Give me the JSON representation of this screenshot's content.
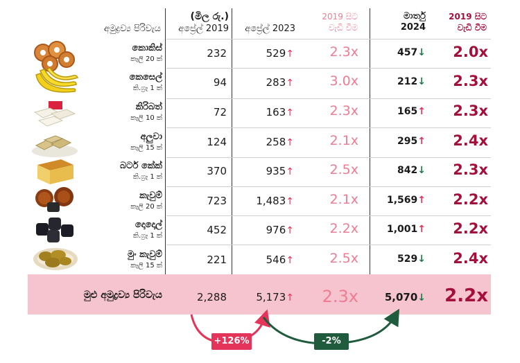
{
  "header": {
    "item_col": "අමුද්‍රව්‍ය පිරිවැය",
    "unit_note": "(මිල රු.)",
    "apr2019": "අප්‍රේල් 2019",
    "apr2023": "අප්‍රේල් 2023",
    "growth_2019_light": "2019 සිට වැඩි වීම",
    "mar2024": "මාර්තු 2024",
    "growth_2019_dark": "2019 සිට වැඩි වීම"
  },
  "chart_data": {
    "type": "table",
    "columns": [
      "අප්‍රේල් 2019",
      "අප්‍රේල් 2023",
      "2019 සිට වැඩි වීම",
      "මාර්තු 2024",
      "2019 සිට වැඩි වීම"
    ],
    "rows": [
      {
        "name": "කොකිස්",
        "unit": "කෑලි 20 ක්",
        "apr2019": "232",
        "apr2023": "529",
        "apr2023_dir": "↑",
        "ratio2023": "2.3x",
        "mar2024": "457",
        "mar2024_dir": "↓",
        "ratio2024": "2.0x",
        "icon": "kokis-icon"
      },
      {
        "name": "කෙසෙල්",
        "unit": "කි.ග්‍රෑ 1 ක්",
        "apr2019": "94",
        "apr2023": "283",
        "apr2023_dir": "↑",
        "ratio2023": "3.0x",
        "mar2024": "212",
        "mar2024_dir": "↓",
        "ratio2024": "2.3x",
        "icon": "banana-icon"
      },
      {
        "name": "කිරිබත්",
        "unit": "කෑලි 10 ක්",
        "apr2019": "72",
        "apr2023": "163",
        "apr2023_dir": "↑",
        "ratio2023": "2.3x",
        "mar2024": "165",
        "mar2024_dir": "↑",
        "ratio2024": "2.3x",
        "icon": "kiribath-icon"
      },
      {
        "name": "අලුවා",
        "unit": "කෑලි 15 ක්",
        "apr2019": "124",
        "apr2023": "258",
        "apr2023_dir": "↑",
        "ratio2023": "2.1x",
        "mar2024": "295",
        "mar2024_dir": "↑",
        "ratio2024": "2.4x",
        "icon": "aluwa-icon"
      },
      {
        "name": "බටර් කේක්",
        "unit": "කි.ග්‍රෑ 1 ක්",
        "apr2019": "370",
        "apr2023": "935",
        "apr2023_dir": "↑",
        "ratio2023": "2.5x",
        "mar2024": "842",
        "mar2024_dir": "↓",
        "ratio2024": "2.3x",
        "icon": "butter-cake-icon"
      },
      {
        "name": "කැවුම්",
        "unit": "කෑලි 20 ක්",
        "apr2019": "723",
        "apr2023": "1,483",
        "apr2023_dir": "↑",
        "ratio2023": "2.1x",
        "mar2024": "1,569",
        "mar2024_dir": "↑",
        "ratio2024": "2.2x",
        "icon": "kavum-icon"
      },
      {
        "name": "දොදොල්",
        "unit": "කි.ග්‍රෑ 1 ක්",
        "apr2019": "452",
        "apr2023": "976",
        "apr2023_dir": "↑",
        "ratio2023": "2.2x",
        "mar2024": "1,001",
        "mar2024_dir": "↑",
        "ratio2024": "2.2x",
        "icon": "dodol-icon"
      },
      {
        "name": "මුං කැවුම්",
        "unit": "කෑලි 15 ක්",
        "apr2019": "221",
        "apr2023": "546",
        "apr2023_dir": "↑",
        "ratio2023": "2.5x",
        "mar2024": "529",
        "mar2024_dir": "↓",
        "ratio2024": "2.4x",
        "icon": "mung-kavum-icon"
      }
    ],
    "total": {
      "name": "මුළු අමුද්‍රව්‍ය පිරිවැය",
      "apr2019": "2,288",
      "apr2023": "5,173",
      "apr2023_dir": "↑",
      "ratio2023": "2.3x",
      "mar2024": "5,070",
      "mar2024_dir": "↓",
      "ratio2024": "2.2x"
    },
    "changes": [
      {
        "label": "+126%",
        "from": "අප්‍රේල් 2019",
        "to": "අප්‍රේල් 2023",
        "color": "#e4345a"
      },
      {
        "label": "-2%",
        "from": "අප්‍රේල් 2023",
        "to": "මාර්තු 2024",
        "color": "#1f5b3c"
      }
    ]
  },
  "colors": {
    "up": "#e4345a",
    "down": "#1e7a4a",
    "ratio_light": "#f07c93",
    "ratio_dark": "#a3103b",
    "total_band": "#f6c4ce"
  }
}
